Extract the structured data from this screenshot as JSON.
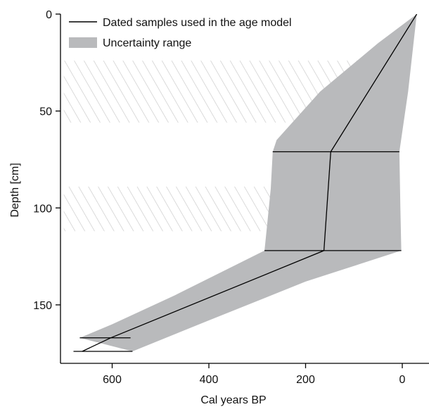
{
  "chart_data": {
    "type": "line",
    "xlabel": "Cal years BP",
    "ylabel": "Depth [cm]",
    "xlim": [
      710,
      0
    ],
    "ylim": [
      0,
      178
    ],
    "x_axis_reversed": true,
    "y_axis_inverted": true,
    "x_ticks": [
      600,
      400,
      200,
      0
    ],
    "y_ticks": [
      0,
      50,
      100,
      150
    ],
    "grid": false,
    "legend_position": "top-left",
    "legend": [
      {
        "label": "Dated samples used in the age model",
        "symbol": "line",
        "color": "#000000"
      },
      {
        "label": "Uncertainty range",
        "symbol": "patch",
        "color": "#b9babc"
      }
    ],
    "series": [
      {
        "name": "Dated samples used in the age model",
        "points": [
          {
            "x": -30,
            "depth": 0
          },
          {
            "x": 148,
            "depth": 71
          },
          {
            "x": 162,
            "depth": 122
          },
          {
            "x": 603,
            "depth": 167
          },
          {
            "x": 662,
            "depth": 174
          }
        ]
      }
    ],
    "dated_samples": [
      {
        "depth": 71,
        "min": 6,
        "max": 268
      },
      {
        "depth": 122,
        "min": 2,
        "max": 285
      },
      {
        "depth": 167,
        "min": 562,
        "max": 667
      },
      {
        "depth": 174,
        "min": 558,
        "max": 680
      }
    ],
    "uncertainty_band": {
      "name": "Uncertainty range",
      "old_edge": [
        {
          "x": -30,
          "depth": 0
        },
        {
          "x": 50,
          "depth": 15
        },
        {
          "x": 170,
          "depth": 40
        },
        {
          "x": 260,
          "depth": 65
        },
        {
          "x": 268,
          "depth": 71
        },
        {
          "x": 272,
          "depth": 90
        },
        {
          "x": 280,
          "depth": 110
        },
        {
          "x": 285,
          "depth": 122
        },
        {
          "x": 470,
          "depth": 145
        },
        {
          "x": 600,
          "depth": 160
        },
        {
          "x": 667,
          "depth": 167
        }
      ],
      "young_edge": [
        {
          "x": 558,
          "depth": 174
        },
        {
          "x": 400,
          "depth": 158
        },
        {
          "x": 200,
          "depth": 138
        },
        {
          "x": 2,
          "depth": 122
        },
        {
          "x": 4,
          "depth": 100
        },
        {
          "x": 6,
          "depth": 71
        },
        {
          "x": -12,
          "depth": 40
        },
        {
          "x": -30,
          "depth": 0
        }
      ],
      "color": "#b9babc"
    },
    "hatched_intervals": [
      {
        "depth_top": 24,
        "depth_bottom": 56,
        "x_start": 700,
        "x_end": 90
      },
      {
        "depth_top": 89,
        "depth_bottom": 112,
        "x_start": 700,
        "x_end": 260
      }
    ]
  }
}
